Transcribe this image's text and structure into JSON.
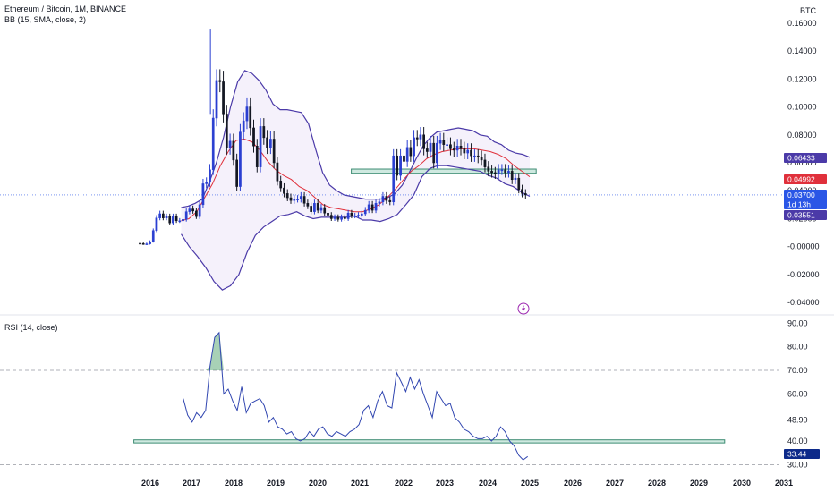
{
  "header": {
    "symbol": "Ethereum / Bitcoin, 1M, BINANCE",
    "indicator": "BB (15, SMA, close, 2)",
    "currency": "BTC"
  },
  "rsi_panel": {
    "label": "RSI (14, close)"
  },
  "price_tags": {
    "bb_upper": "0.06433",
    "bb_basis": "0.04992",
    "last_price": "0.03700",
    "countdown": "1d 13h",
    "bb_lower": "0.03551",
    "rsi_value": "33.44"
  },
  "colors": {
    "bull": "#2a3fd1",
    "bear": "#131722",
    "bb_band": "#4b3aa8",
    "bb_basis": "#e0303b",
    "bb_fill": "#f5f1fb",
    "zone_fill": "#cfe9e0",
    "zone_stroke": "#3d8c73",
    "rsi_line": "#3146b0",
    "rsi_ob_fill": "#3d9a5e",
    "upper_tag": "#4b3aa8",
    "basis_tag": "#e0303b",
    "last_tag": "#2a56e6",
    "lower_tag": "#4b3aa8",
    "rsi_tag": "#0d2a8a"
  },
  "chart_data": [
    {
      "type": "candlestick",
      "title": "Ethereum / Bitcoin, 1M, BINANCE",
      "ylabel": "BTC",
      "ylim": [
        -0.045,
        0.165
      ],
      "y_ticks": [
        "0.16000",
        "0.14000",
        "0.12000",
        "0.10000",
        "0.08000",
        "0.06000",
        "0.04000",
        "0.02000",
        "-0.00000",
        "-0.02000",
        "-0.04000"
      ],
      "y_tick_values": [
        0.16,
        0.14,
        0.12,
        0.1,
        0.08,
        0.06,
        0.04,
        0.02,
        0.0,
        -0.02,
        -0.04
      ],
      "x_ticks": [
        "2016",
        "2017",
        "2018",
        "2019",
        "2020",
        "2021",
        "2022",
        "2023",
        "2024",
        "2025",
        "2026",
        "2027",
        "2028",
        "2029",
        "2030",
        "2031"
      ],
      "x_tick_years": [
        2016,
        2017,
        2018,
        2019,
        2020,
        2021,
        2022,
        2023,
        2024,
        2025,
        2026,
        2027,
        2028,
        2029,
        2030,
        2031
      ],
      "x_range_years": [
        2015.5,
        2031.3
      ],
      "close": [
        0.0022,
        0.0018,
        0.002,
        0.0035,
        0.0115,
        0.0205,
        0.0235,
        0.0205,
        0.0215,
        0.017,
        0.0215,
        0.0185,
        0.0185,
        0.0195,
        0.025,
        0.027,
        0.0255,
        0.0215,
        0.03,
        0.045,
        0.046,
        0.055,
        0.092,
        0.119,
        0.118,
        0.095,
        0.0705,
        0.0755,
        0.062,
        0.043,
        0.082,
        0.09,
        0.1,
        0.085,
        0.072,
        0.057,
        0.086,
        0.078,
        0.071,
        0.077,
        0.06,
        0.047,
        0.042,
        0.038,
        0.035,
        0.033,
        0.034,
        0.034,
        0.036,
        0.031,
        0.029,
        0.025,
        0.031,
        0.026,
        0.028,
        0.024,
        0.0225,
        0.02,
        0.021,
        0.0195,
        0.021,
        0.02,
        0.024,
        0.022,
        0.022,
        0.0225,
        0.0235,
        0.026,
        0.03,
        0.026,
        0.031,
        0.032,
        0.036,
        0.033,
        0.032,
        0.065,
        0.051,
        0.065,
        0.061,
        0.071,
        0.065,
        0.078,
        0.077,
        0.08,
        0.07,
        0.068,
        0.074,
        0.06,
        0.074,
        0.076,
        0.073,
        0.073,
        0.07,
        0.069,
        0.072,
        0.07,
        0.067,
        0.069,
        0.065,
        0.065,
        0.064,
        0.062,
        0.057,
        0.054,
        0.053,
        0.052,
        0.055,
        0.055,
        0.053,
        0.054,
        0.048,
        0.049,
        0.041,
        0.038,
        0.037
      ],
      "bb_upper": [
        0.028,
        0.029,
        0.031,
        0.034,
        0.046,
        0.06,
        0.078,
        0.1,
        0.118,
        0.126,
        0.124,
        0.119,
        0.112,
        0.102,
        0.098,
        0.098,
        0.097,
        0.096,
        0.088,
        0.07,
        0.053,
        0.044,
        0.04,
        0.037,
        0.036,
        0.035,
        0.034,
        0.034,
        0.034,
        0.035,
        0.038,
        0.044,
        0.053,
        0.063,
        0.072,
        0.078,
        0.082,
        0.083,
        0.084,
        0.085,
        0.084,
        0.083,
        0.08,
        0.079,
        0.075,
        0.073,
        0.069,
        0.067,
        0.066,
        0.064
      ],
      "bb_basis": [
        0.0185,
        0.02,
        0.025,
        0.035,
        0.045,
        0.058,
        0.068,
        0.076,
        0.077,
        0.075,
        0.069,
        0.061,
        0.055,
        0.051,
        0.048,
        0.043,
        0.04,
        0.035,
        0.03,
        0.028,
        0.027,
        0.026,
        0.025,
        0.025,
        0.027,
        0.03,
        0.035,
        0.041,
        0.048,
        0.054,
        0.058,
        0.063,
        0.066,
        0.068,
        0.069,
        0.07,
        0.07,
        0.07,
        0.069,
        0.068,
        0.066,
        0.063,
        0.058,
        0.054,
        0.05
      ],
      "bb_lower": [
        0.009,
        0.0,
        -0.007,
        -0.015,
        -0.025,
        -0.031,
        -0.028,
        -0.02,
        -0.004,
        0.008,
        0.014,
        0.018,
        0.022,
        0.023,
        0.025,
        0.022,
        0.02,
        0.021,
        0.021,
        0.021,
        0.021,
        0.022,
        0.019,
        0.019,
        0.018,
        0.02,
        0.023,
        0.03,
        0.037,
        0.05,
        0.056,
        0.058,
        0.058,
        0.057,
        0.056,
        0.055,
        0.054,
        0.051,
        0.049,
        0.045,
        0.043,
        0.039,
        0.036
      ],
      "support_zone": [
        0.0525,
        0.0555
      ],
      "support_zone_years": [
        2020.8,
        2025.15
      ],
      "bb_upper_last": 0.06433,
      "bb_basis_last": 0.04992,
      "bb_lower_last": 0.03551,
      "last_price": 0.037,
      "series": [
        {
          "name": "BB (15, SMA, close, 2)"
        }
      ]
    },
    {
      "type": "line",
      "title": "RSI (14, close)",
      "ylim": [
        29,
        92
      ],
      "y_ticks": [
        "90.00",
        "80.00",
        "70.00",
        "60.00",
        "48.90",
        "40.00",
        "30.00"
      ],
      "y_tick_values": [
        90,
        80,
        70,
        60,
        48.9,
        40,
        30
      ],
      "dashed_levels": [
        70,
        48.9,
        30
      ],
      "horizontal_zone": [
        39.2,
        40.5
      ],
      "horizontal_zone_years": [
        2015.6,
        2029.6
      ],
      "values": [
        58,
        51,
        48,
        52,
        50,
        53,
        72,
        84,
        86,
        60,
        62,
        57,
        53,
        63,
        52,
        56,
        57,
        58,
        55,
        48,
        50,
        46,
        45,
        43,
        44,
        41,
        40,
        41,
        44,
        42,
        45,
        46,
        43,
        42,
        44,
        43,
        42,
        44,
        45,
        47,
        53,
        55,
        50,
        57,
        61,
        55,
        54,
        69,
        65,
        61,
        67,
        62,
        66,
        60,
        55,
        50,
        61,
        58,
        55,
        56,
        50,
        48,
        45,
        44,
        42,
        41,
        41,
        42,
        40,
        42,
        46,
        44,
        40,
        38,
        34,
        32,
        33.44
      ],
      "series": [
        {
          "name": "RSI (14, close)"
        }
      ]
    }
  ]
}
